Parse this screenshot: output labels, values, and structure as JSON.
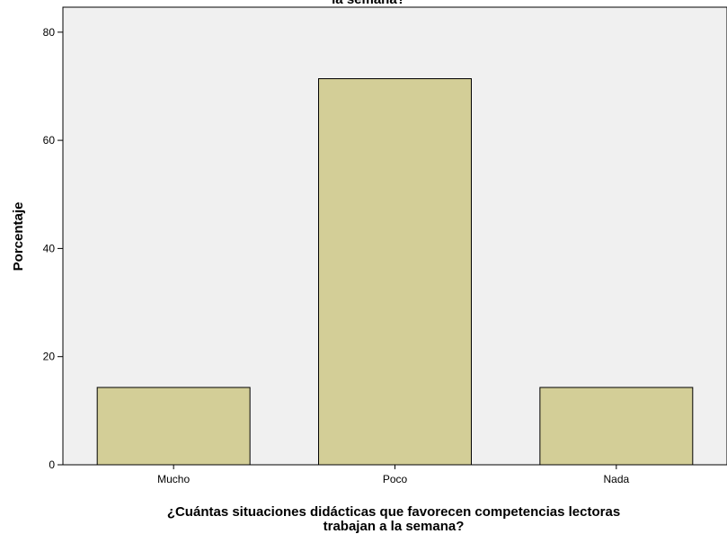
{
  "chart_data": {
    "type": "bar",
    "title": "la semana?",
    "categories": [
      "Mucho",
      "Poco",
      "Nada"
    ],
    "values": [
      14.3,
      71.4,
      14.3
    ],
    "xlabel_lines": [
      "¿Cuántas situaciones didácticas que favorecen competencias lectoras",
      "trabajan a la semana?"
    ],
    "ylabel": "Porcentaje",
    "ylim": [
      0,
      84
    ],
    "yticks": [
      0,
      20,
      40,
      60,
      80
    ],
    "grid": false,
    "colors": {
      "plot_background": "#f0f0f0",
      "bar_fill": "#d3ce97",
      "bar_stroke": "#000000"
    }
  }
}
